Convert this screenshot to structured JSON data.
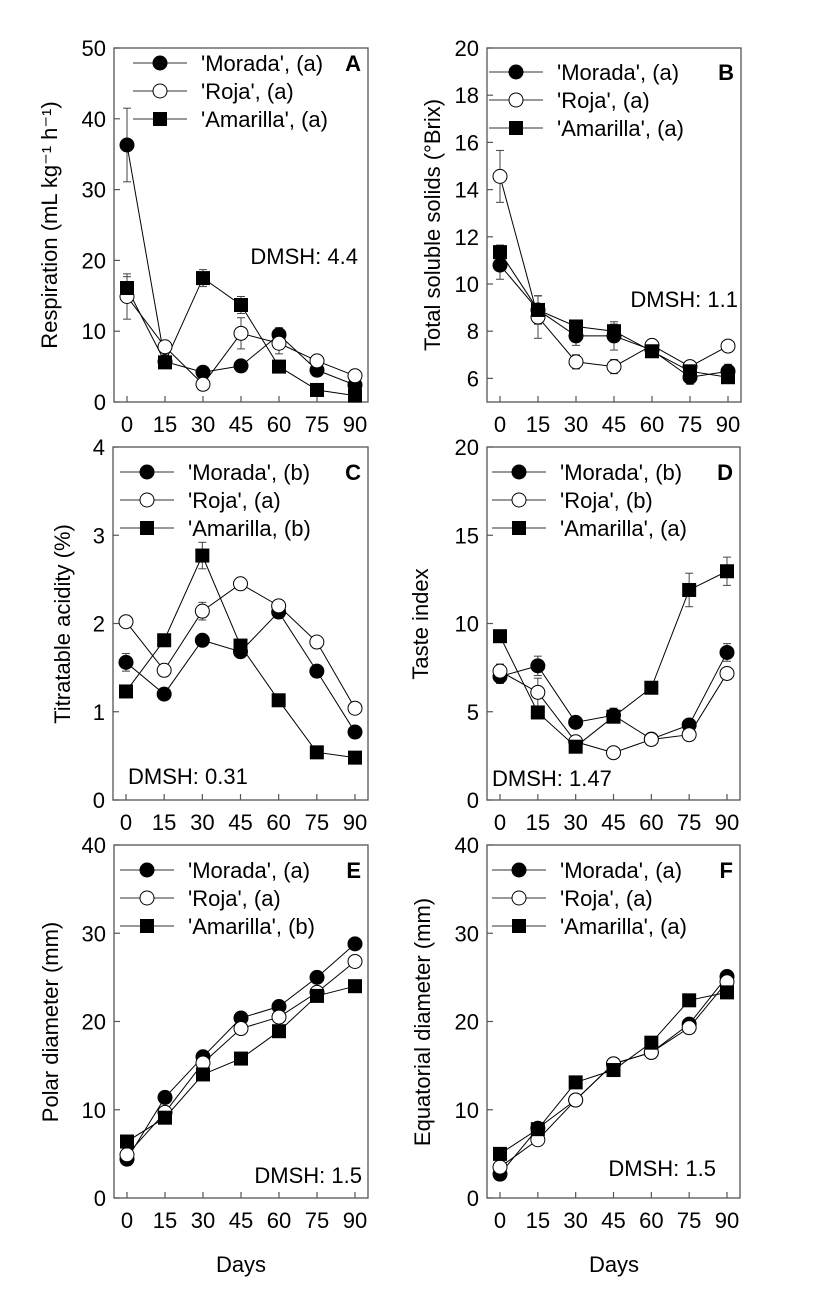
{
  "chart_data": [
    {
      "type": "line",
      "panel_letter": "A",
      "ylabel": "Respiration (mL kg⁻¹ h⁻¹)",
      "xlabel": "",
      "x": [
        0,
        15,
        30,
        45,
        60,
        75,
        90
      ],
      "ylim": [
        0,
        50
      ],
      "yticks": [
        0,
        10,
        20,
        30,
        40,
        50
      ],
      "annotation": "DMSH: 4.4",
      "grid": false,
      "legend_position": "top-left",
      "series": [
        {
          "name": "'Morada', (a)",
          "marker": "filled-circle",
          "values": [
            36.3,
            5.7,
            4.2,
            5.1,
            9.5,
            4.5,
            2.4
          ],
          "errors": [
            5.2,
            0,
            0.6,
            0.8,
            1,
            0.6,
            0.5
          ]
        },
        {
          "name": "'Roja', (a)",
          "marker": "open-circle",
          "values": [
            14.9,
            7.8,
            2.5,
            9.7,
            8.3,
            5.8,
            3.7
          ],
          "errors": [
            3.2,
            0,
            0,
            2.2,
            1.5,
            0,
            0
          ]
        },
        {
          "name": "'Amarilla', (a)",
          "marker": "filled-square",
          "values": [
            16.1,
            5.6,
            17.5,
            13.7,
            5.0,
            1.7,
            0.9
          ],
          "errors": [
            1.6,
            0,
            1.2,
            1.2,
            0,
            0,
            0
          ]
        }
      ]
    },
    {
      "type": "line",
      "panel_letter": "B",
      "ylabel": "Total soluble solids (°Brix)",
      "xlabel": "",
      "x": [
        0,
        15,
        30,
        45,
        60,
        75,
        90
      ],
      "ylim": [
        5,
        20
      ],
      "yticks": [
        6,
        8,
        10,
        12,
        14,
        16,
        18,
        20
      ],
      "annotation": "DMSH: 1.1",
      "grid": false,
      "legend_position": "top-left",
      "series": [
        {
          "name": "'Morada', (a)",
          "marker": "filled-circle",
          "values": [
            10.8,
            8.9,
            7.8,
            7.8,
            7.2,
            6.05,
            6.3
          ],
          "errors": [
            0.6,
            0.6,
            0.4,
            0.6,
            0,
            0.3,
            0.3
          ]
        },
        {
          "name": "'Roja', (a)",
          "marker": "open-circle",
          "values": [
            14.56,
            8.6,
            6.7,
            6.5,
            7.4,
            6.5,
            7.37
          ],
          "errors": [
            1.1,
            0.9,
            0.3,
            0.3,
            0,
            0.2,
            0
          ]
        },
        {
          "name": "'Amarilla', (a)",
          "marker": "filled-square",
          "values": [
            11.35,
            8.9,
            8.2,
            8.0,
            7.15,
            6.3,
            6.05
          ],
          "errors": [
            0.3,
            0.6,
            0.2,
            0.3,
            0,
            0,
            0
          ]
        }
      ]
    },
    {
      "type": "line",
      "panel_letter": "C",
      "ylabel": "Titratable acidity (%)",
      "xlabel": "",
      "x": [
        0,
        15,
        30,
        45,
        60,
        75,
        90
      ],
      "ylim": [
        0,
        4
      ],
      "yticks": [
        0,
        1,
        2,
        3,
        4
      ],
      "annotation": "DMSH: 0.31",
      "grid": false,
      "legend_position": "top-left",
      "series": [
        {
          "name": "'Morada', (b)",
          "marker": "filled-circle",
          "values": [
            1.56,
            1.2,
            1.81,
            1.68,
            2.13,
            1.46,
            0.77
          ],
          "errors": [
            0.1,
            0,
            0,
            0,
            0,
            0.06,
            0
          ]
        },
        {
          "name": "'Roja', (a)",
          "marker": "open-circle",
          "values": [
            2.02,
            1.47,
            2.14,
            2.45,
            2.2,
            1.79,
            1.04
          ],
          "errors": [
            0,
            0,
            0.1,
            0,
            0.06,
            0,
            0
          ]
        },
        {
          "name": "'Amarilla, (b)",
          "marker": "filled-square",
          "values": [
            1.23,
            1.81,
            2.77,
            1.75,
            1.13,
            0.54,
            0.48
          ],
          "errors": [
            0,
            0.07,
            0.15,
            0.05,
            0,
            0,
            0
          ]
        }
      ]
    },
    {
      "type": "line",
      "panel_letter": "D",
      "ylabel": "Taste index",
      "xlabel": "",
      "x": [
        0,
        15,
        30,
        45,
        60,
        75,
        90
      ],
      "ylim": [
        0,
        20
      ],
      "yticks": [
        0,
        5,
        10,
        15,
        20
      ],
      "annotation": "DMSH: 1.47",
      "grid": false,
      "legend_position": "top-left",
      "series": [
        {
          "name": "'Morada', (b)",
          "marker": "filled-circle",
          "values": [
            7.0,
            7.6,
            4.4,
            4.8,
            3.45,
            4.25,
            8.36
          ],
          "errors": [
            0.4,
            0.55,
            0,
            0.4,
            0,
            0,
            0.5
          ]
        },
        {
          "name": "'Roja', (b)",
          "marker": "open-circle",
          "values": [
            7.3,
            6.1,
            3.3,
            2.68,
            3.43,
            3.7,
            7.17
          ],
          "errors": [
            0.4,
            0.8,
            0,
            0,
            0,
            0,
            0
          ]
        },
        {
          "name": "'Amarilla', (a)",
          "marker": "filled-square",
          "values": [
            9.28,
            4.96,
            3.02,
            4.72,
            6.36,
            11.9,
            12.96
          ],
          "errors": [
            0,
            0,
            0,
            0,
            0,
            0.95,
            0.8
          ]
        }
      ]
    },
    {
      "type": "line",
      "panel_letter": "E",
      "ylabel": "Polar diameter (mm)",
      "xlabel": "Days",
      "x": [
        0,
        15,
        30,
        45,
        60,
        75,
        90
      ],
      "ylim": [
        0,
        40
      ],
      "yticks": [
        0,
        10,
        20,
        30,
        40
      ],
      "annotation": "DMSH: 1.5",
      "grid": false,
      "legend_position": "top-left",
      "series": [
        {
          "name": "'Morada', (a)",
          "marker": "filled-circle",
          "values": [
            4.4,
            11.4,
            16.0,
            20.4,
            21.7,
            25.0,
            28.8
          ]
        },
        {
          "name": "'Roja', (a)",
          "marker": "open-circle",
          "values": [
            4.9,
            9.7,
            15.3,
            19.2,
            20.5,
            23.3,
            26.8
          ]
        },
        {
          "name": "'Amarilla', (b)",
          "marker": "filled-square",
          "values": [
            6.4,
            9.1,
            14.0,
            15.8,
            18.9,
            22.9,
            24.0
          ]
        }
      ]
    },
    {
      "type": "line",
      "panel_letter": "F",
      "ylabel": "Equatorial diameter (mm)",
      "xlabel": "Days",
      "x": [
        0,
        15,
        30,
        45,
        60,
        75,
        90
      ],
      "ylim": [
        0,
        40
      ],
      "yticks": [
        0,
        10,
        20,
        30,
        40
      ],
      "annotation": "DMSH: 1.5",
      "grid": false,
      "legend_position": "top-left",
      "series": [
        {
          "name": "'Morada', (a)",
          "marker": "filled-circle",
          "values": [
            2.7,
            7.9,
            11.1,
            15.2,
            16.5,
            19.7,
            25.1
          ]
        },
        {
          "name": "'Roja', (a)",
          "marker": "open-circle",
          "values": [
            3.5,
            6.6,
            11.1,
            15.2,
            16.5,
            19.3,
            24.5
          ]
        },
        {
          "name": "'Amarilla', (a)",
          "marker": "filled-square",
          "values": [
            5.0,
            7.8,
            13.1,
            14.5,
            17.6,
            22.4,
            23.3
          ]
        }
      ]
    }
  ]
}
